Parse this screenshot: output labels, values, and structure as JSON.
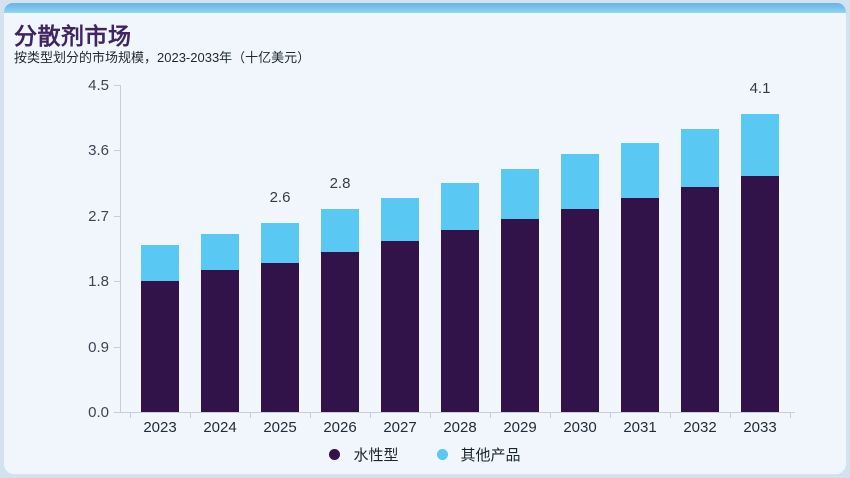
{
  "card": {
    "title": "分散剂市场",
    "subtitle": "按类型划分的市场规模，2023-2033年（十亿美元）"
  },
  "colors": {
    "accent_strip": "#74c3ec",
    "water_based": "#321349",
    "other_products": "#59c8f2",
    "card_bg": "#f0f6fb",
    "outer_bg": "#d3e2ef",
    "axis": "#c6cfd8"
  },
  "chart_data": {
    "type": "bar",
    "stacked": true,
    "title": "分散剂市场",
    "subtitle": "按类型划分的市场规模，2023-2033年（十亿美元）",
    "unit": "十亿美元",
    "categories": [
      "2023",
      "2024",
      "2025",
      "2026",
      "2027",
      "2028",
      "2029",
      "2030",
      "2031",
      "2032",
      "2033"
    ],
    "series": [
      {
        "name": "水性型",
        "color": "#321349",
        "values": [
          1.8,
          1.95,
          2.05,
          2.2,
          2.35,
          2.5,
          2.65,
          2.8,
          2.95,
          3.1,
          3.25
        ]
      },
      {
        "name": "其他产品",
        "color": "#59c8f2",
        "values": [
          0.5,
          0.5,
          0.55,
          0.6,
          0.6,
          0.65,
          0.7,
          0.75,
          0.75,
          0.8,
          0.85
        ]
      }
    ],
    "totals": [
      2.3,
      2.45,
      2.6,
      2.8,
      2.95,
      3.15,
      3.35,
      3.55,
      3.7,
      3.9,
      4.1
    ],
    "bar_labels": {
      "2025": "2.6",
      "2026": "2.8",
      "2033": "4.1"
    },
    "y_ticks": [
      "0.0",
      "0.9",
      "1.8",
      "2.7",
      "3.6",
      "4.5"
    ],
    "ylim": [
      0,
      4.5
    ],
    "grid": false,
    "legend_position": "bottom"
  },
  "legend": {
    "items": [
      {
        "label": "水性型",
        "color": "#321349"
      },
      {
        "label": "其他产品",
        "color": "#59c8f2"
      }
    ]
  }
}
